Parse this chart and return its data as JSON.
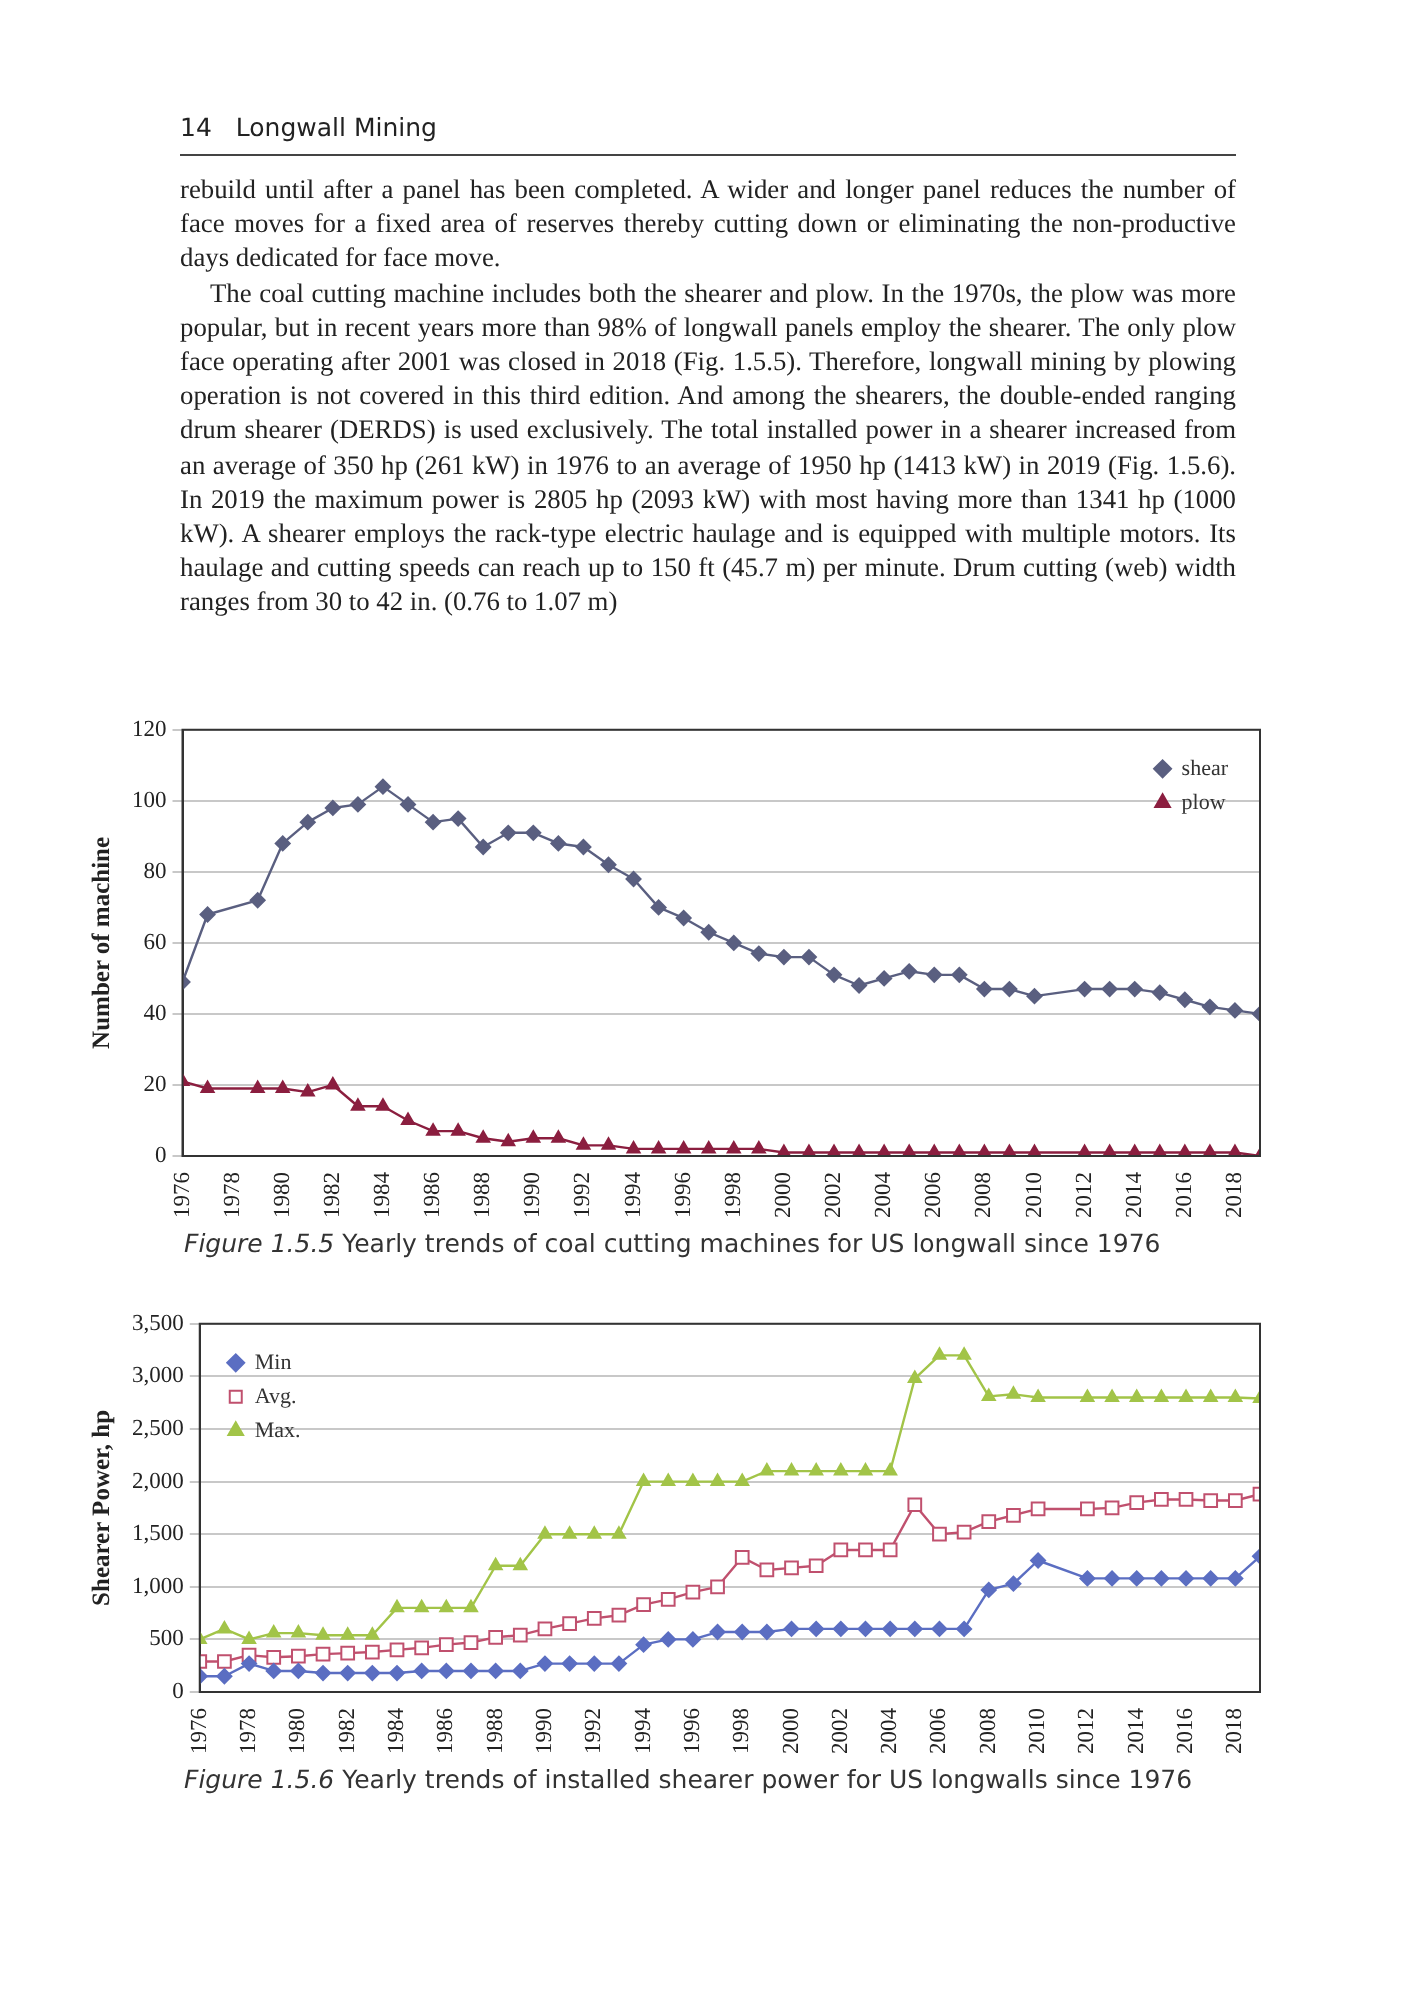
{
  "chart_data": [
    {
      "type": "other",
      "title": "Longwall Mining",
      "annotations": [
        "14",
        "rebuild until after a panel has been completed. A wider and longer panel reduces the number of face moves for a fixed area of reserves thereby cutting down or eliminating the non-productive days dedicated for face move.",
        "The coal cutting machine includes both the shearer and plow. In the 1970s, the plow was more popular, but in recent years more than 98% of longwall panels employ the shearer. The only plow face operating after 2001 was closed in 2018 (Fig. 1.5.5). Therefore, longwall mining by plowing operation is not covered in this third edition. And among the shearers, the double-ended ranging drum shearer (DERDS) is used exclusively. The total installed power in a shearer increased from an average of 350 hp (261 kW) in 1976 to an average of 1950 hp (1413 kW) in 2019 (Fig. 1.5.6). In 2019 the maximum power is 2805 hp (2093 kW) with most having more than 1341 hp (1000 kW). A shearer employs the rack-type electric haulage and is equipped with multiple motors. Its haulage and cutting speeds can reach up to 150 ft (45.7 m) per minute. Drum cutting (web) width ranges from 30 to 42 in. (0.76 to 1.07 m)"
      ]
    },
    {
      "type": "line",
      "ylabel": "Number of machine",
      "xlim": [
        1976,
        2019
      ],
      "xticks": [
        1976,
        1978,
        1980,
        1982,
        1984,
        1986,
        1988,
        1990,
        1992,
        1994,
        1996,
        1998,
        2000,
        2002,
        2004,
        2006,
        2008,
        2010,
        2012,
        2014,
        2016,
        2018
      ],
      "ylim": [
        0,
        120
      ],
      "yticks": [
        0,
        20,
        40,
        60,
        80,
        100,
        120
      ],
      "grid": "y",
      "legend": "top right",
      "line_style": "solid",
      "annotations": [
        "Figure 1.5.5 Yearly trends of coal cutting machines for US longwall since 1976"
      ],
      "series": [
        {
          "name": "shear",
          "color": "#5a5f80",
          "marker": "diamond",
          "x": [
            1976,
            1977,
            1979,
            1980,
            1981,
            1982,
            1983,
            1984,
            1985,
            1986,
            1987,
            1988,
            1989,
            1990,
            1991,
            1992,
            1993,
            1994,
            1995,
            1996,
            1997,
            1998,
            1999,
            2000,
            2001,
            2002,
            2003,
            2004,
            2005,
            2006,
            2007,
            2008,
            2009,
            2010,
            2012,
            2013,
            2014,
            2015,
            2016,
            2017,
            2018,
            2019
          ],
          "values": [
            49,
            68,
            72,
            88,
            94,
            98,
            99,
            104,
            99,
            94,
            95,
            87,
            91,
            91,
            88,
            87,
            82,
            78,
            70,
            67,
            63,
            60,
            57,
            56,
            56,
            51,
            48,
            50,
            52,
            51,
            51,
            47,
            47,
            45,
            47,
            47,
            47,
            46,
            44,
            42,
            41,
            40
          ]
        },
        {
          "name": "plow",
          "color": "#8b1e3f",
          "marker": "triangle",
          "x": [
            1976,
            1977,
            1979,
            1980,
            1981,
            1982,
            1983,
            1984,
            1985,
            1986,
            1987,
            1988,
            1989,
            1990,
            1991,
            1992,
            1993,
            1994,
            1995,
            1996,
            1997,
            1998,
            1999,
            2000,
            2001,
            2002,
            2003,
            2004,
            2005,
            2006,
            2007,
            2008,
            2009,
            2010,
            2012,
            2013,
            2014,
            2015,
            2016,
            2017,
            2018,
            2019
          ],
          "values": [
            21,
            19,
            19,
            19,
            18,
            20,
            14,
            14,
            10,
            7,
            7,
            5,
            4,
            5,
            5,
            3,
            3,
            2,
            2,
            2,
            2,
            2,
            2,
            1,
            1,
            1,
            1,
            1,
            1,
            1,
            1,
            1,
            1,
            1,
            1,
            1,
            1,
            1,
            1,
            1,
            1,
            0
          ]
        }
      ]
    },
    {
      "type": "line",
      "ylabel": "Shearer Power, hp",
      "xlim": [
        1976,
        2019
      ],
      "xticks": [
        1976,
        1978,
        1980,
        1982,
        1984,
        1986,
        1988,
        1990,
        1992,
        1994,
        1996,
        1998,
        2000,
        2002,
        2004,
        2006,
        2008,
        2010,
        2012,
        2014,
        2016,
        2018
      ],
      "ylim": [
        0,
        3500
      ],
      "yticks": [
        {
          "value": 0,
          "label": "0"
        },
        {
          "value": 500,
          "label": "500"
        },
        {
          "value": 1000,
          "label": "1,000"
        },
        {
          "value": 1500,
          "label": "1,500"
        },
        {
          "value": 2000,
          "label": "2,000"
        },
        {
          "value": 2500,
          "label": "2,500"
        },
        {
          "value": 3000,
          "label": "3,000"
        },
        {
          "value": 3500,
          "label": "3,500"
        }
      ],
      "grid": "y",
      "legend": "top left",
      "line_style": "solid",
      "annotations": [
        "Figure 1.5.6 Yearly trends of installed shearer power for US longwalls since 1976"
      ],
      "series": [
        {
          "name": "Min",
          "color": "#5b6ec2",
          "marker": "diamond",
          "x": [
            1976,
            1977,
            1978,
            1979,
            1980,
            1981,
            1982,
            1983,
            1984,
            1985,
            1986,
            1987,
            1988,
            1989,
            1990,
            1991,
            1992,
            1993,
            1994,
            1995,
            1996,
            1997,
            1998,
            1999,
            2000,
            2001,
            2002,
            2003,
            2004,
            2005,
            2006,
            2007,
            2008,
            2009,
            2010,
            2012,
            2013,
            2014,
            2015,
            2016,
            2017,
            2018,
            2019
          ],
          "values": [
            150,
            150,
            270,
            200,
            200,
            180,
            180,
            180,
            180,
            200,
            200,
            200,
            200,
            200,
            270,
            270,
            270,
            270,
            450,
            500,
            500,
            570,
            570,
            570,
            600,
            600,
            600,
            600,
            600,
            600,
            600,
            600,
            970,
            1030,
            1250,
            1080,
            1080,
            1080,
            1080,
            1080,
            1080,
            1080,
            1290
          ]
        },
        {
          "name": "Avg.",
          "color": "#c0506e",
          "marker": "square",
          "x": [
            1976,
            1977,
            1978,
            1979,
            1980,
            1981,
            1982,
            1983,
            1984,
            1985,
            1986,
            1987,
            1988,
            1989,
            1990,
            1991,
            1992,
            1993,
            1994,
            1995,
            1996,
            1997,
            1998,
            1999,
            2000,
            2001,
            2002,
            2003,
            2004,
            2005,
            2006,
            2007,
            2008,
            2009,
            2010,
            2012,
            2013,
            2014,
            2015,
            2016,
            2017,
            2018,
            2019
          ],
          "values": [
            290,
            290,
            350,
            330,
            340,
            360,
            370,
            380,
            400,
            420,
            450,
            470,
            520,
            540,
            600,
            650,
            700,
            730,
            830,
            880,
            950,
            1000,
            1280,
            1160,
            1180,
            1200,
            1350,
            1350,
            1350,
            1780,
            1500,
            1520,
            1620,
            1680,
            1740,
            1740,
            1750,
            1800,
            1830,
            1830,
            1820,
            1820,
            1880
          ]
        },
        {
          "name": "Max.",
          "color": "#a2c448",
          "marker": "triangle",
          "x": [
            1976,
            1977,
            1978,
            1979,
            1980,
            1981,
            1982,
            1983,
            1984,
            1985,
            1986,
            1987,
            1988,
            1989,
            1990,
            1991,
            1992,
            1993,
            1994,
            1995,
            1996,
            1997,
            1998,
            1999,
            2000,
            2001,
            2002,
            2003,
            2004,
            2005,
            2006,
            2007,
            2008,
            2009,
            2010,
            2012,
            2013,
            2014,
            2015,
            2016,
            2017,
            2018,
            2019
          ],
          "values": [
            500,
            600,
            500,
            560,
            560,
            540,
            540,
            540,
            800,
            800,
            800,
            800,
            1200,
            1200,
            1500,
            1500,
            1500,
            1500,
            2000,
            2000,
            2000,
            2000,
            2000,
            2100,
            2100,
            2100,
            2100,
            2100,
            2100,
            2980,
            3200,
            3200,
            2810,
            2830,
            2800,
            2800,
            2800,
            2800,
            2800,
            2800,
            2800,
            2800,
            2790
          ]
        }
      ]
    }
  ]
}
